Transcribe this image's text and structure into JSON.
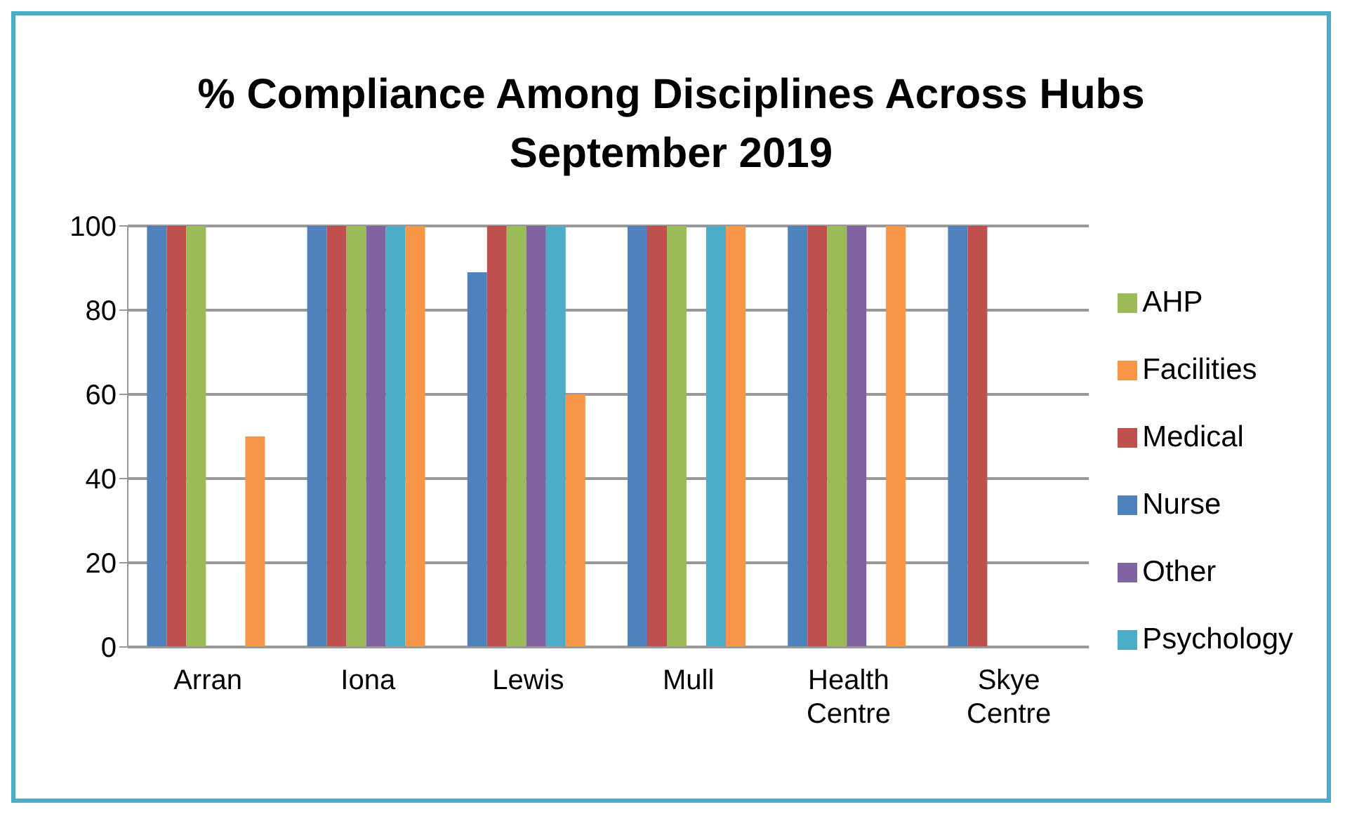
{
  "chart_data": {
    "type": "bar",
    "title": "% Compliance Among Disciplines Across Hubs",
    "subtitle": "September 2019",
    "categories": [
      "Arran",
      "Iona",
      "Lewis",
      "Mull",
      "Health Centre",
      "Skye Centre"
    ],
    "series": [
      {
        "name": "Nurse",
        "color": "#4f81bd",
        "values": [
          100,
          100,
          89,
          100,
          100,
          100
        ]
      },
      {
        "name": "Medical",
        "color": "#c0504d",
        "values": [
          100,
          100,
          100,
          100,
          100,
          100
        ]
      },
      {
        "name": "AHP",
        "color": "#9bbb59",
        "values": [
          100,
          100,
          100,
          100,
          100,
          0
        ]
      },
      {
        "name": "Other",
        "color": "#8064a2",
        "values": [
          0,
          100,
          100,
          0,
          100,
          0
        ]
      },
      {
        "name": "Psychology",
        "color": "#4bacc6",
        "values": [
          0,
          100,
          100,
          100,
          0,
          0
        ]
      },
      {
        "name": "Facilities",
        "color": "#f79646",
        "values": [
          50,
          100,
          60,
          100,
          100,
          0
        ]
      }
    ],
    "ylim": [
      0,
      100
    ],
    "yticks": [
      0,
      20,
      40,
      60,
      80,
      100
    ],
    "grid": "y",
    "legend": "right"
  }
}
